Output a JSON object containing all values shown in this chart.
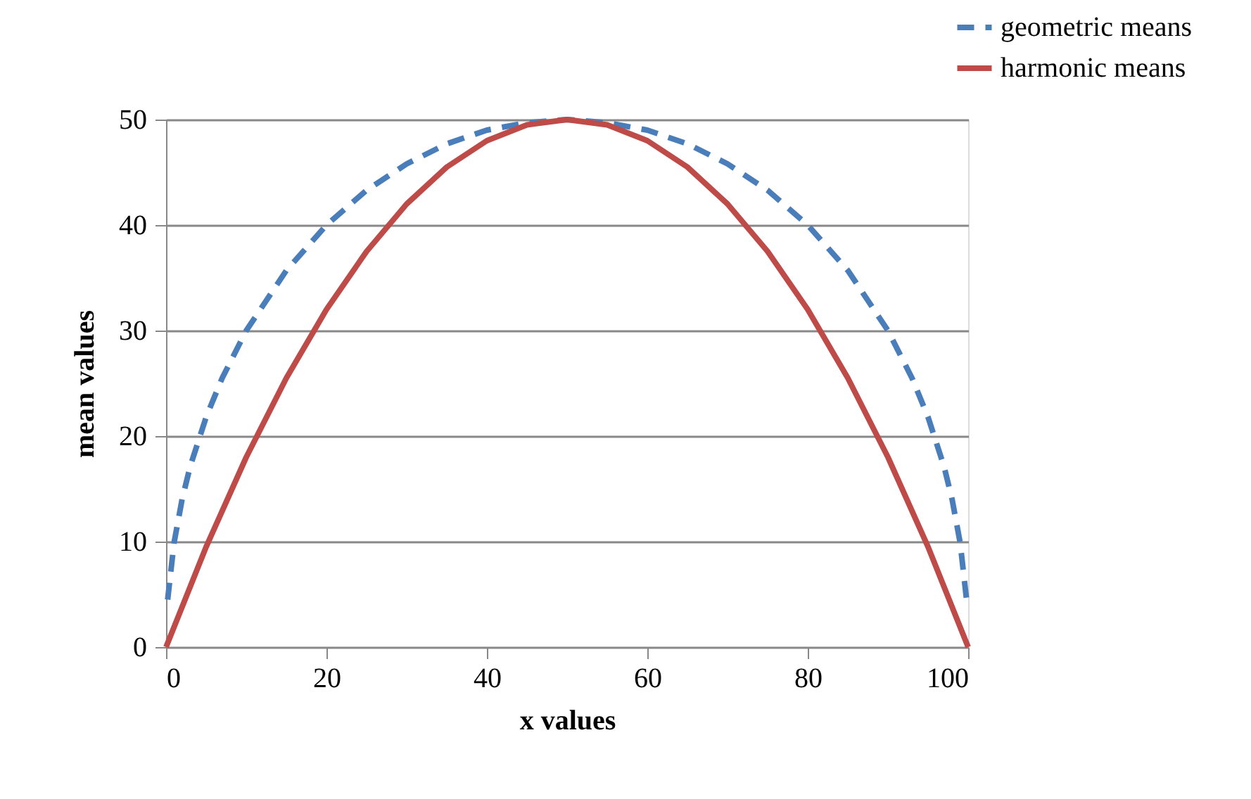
{
  "chart_data": {
    "type": "line",
    "xlabel": "x values",
    "ylabel": "mean values",
    "xlim": [
      0,
      100
    ],
    "xticks": [
      0,
      20,
      40,
      60,
      80,
      100
    ],
    "ylim": [
      0,
      50
    ],
    "yticks": [
      0,
      10,
      20,
      30,
      40,
      50
    ],
    "grid": "y",
    "legend": "top right",
    "series": [
      {
        "name": "geometric means",
        "color": "#4a7ebb",
        "line_style": "dashed",
        "x": [
          0.2,
          1,
          2,
          3,
          5,
          7,
          10,
          15,
          20,
          25,
          30,
          35,
          40,
          45,
          50,
          55,
          60,
          65,
          70,
          75,
          80,
          85,
          90,
          93,
          95,
          97,
          98,
          99,
          99.8
        ],
        "values": [
          4.5,
          9.9,
          14,
          17.1,
          21.8,
          25.5,
          30,
          35.7,
          40,
          43.3,
          45.8,
          47.7,
          49,
          49.7,
          50,
          49.7,
          49,
          47.7,
          45.8,
          43.3,
          40,
          35.7,
          30,
          25.5,
          21.8,
          17.1,
          14,
          9.9,
          4.5
        ]
      },
      {
        "name": "harmonic means",
        "color": "#be4b48",
        "line_style": "solid",
        "x": [
          0,
          5,
          10,
          15,
          20,
          25,
          30,
          35,
          40,
          45,
          50,
          55,
          60,
          65,
          70,
          75,
          80,
          85,
          90,
          95,
          100
        ],
        "values": [
          0,
          9.5,
          18,
          25.5,
          32,
          37.5,
          42,
          45.5,
          48,
          49.5,
          50,
          49.5,
          48,
          45.5,
          42,
          37.5,
          32,
          25.5,
          18,
          9.5,
          0
        ]
      }
    ]
  }
}
